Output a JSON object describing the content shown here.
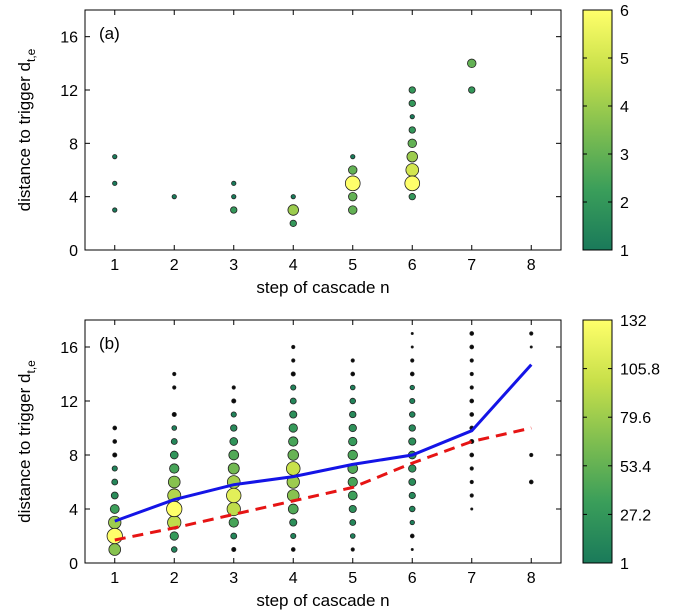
{
  "chart_data": [
    {
      "type": "scatter",
      "panel_label": "(a)",
      "xlabel": "step of cascade n",
      "ylabel_main": "distance to trigger d",
      "ylabel_sub": "t,e",
      "xlim": [
        0.5,
        8.5
      ],
      "ylim": [
        0,
        18
      ],
      "xticks": [
        "1",
        "2",
        "3",
        "4",
        "5",
        "6",
        "7",
        "8"
      ],
      "yticks": [
        "0",
        "4",
        "8",
        "12",
        "16"
      ],
      "colorbar": {
        "range": [
          1,
          6
        ],
        "ticks": [
          "1",
          "2",
          "3",
          "4",
          "5",
          "6"
        ],
        "colors": [
          "#1a7a5a",
          "#3a9e5a",
          "#7fbe50",
          "#c8e04a",
          "#ffff6a"
        ]
      },
      "points": [
        {
          "x": 1,
          "y": 3,
          "count": 1
        },
        {
          "x": 1,
          "y": 5,
          "count": 1
        },
        {
          "x": 1,
          "y": 7,
          "count": 1
        },
        {
          "x": 2,
          "y": 4,
          "count": 1
        },
        {
          "x": 3,
          "y": 3,
          "count": 2
        },
        {
          "x": 3,
          "y": 4,
          "count": 1
        },
        {
          "x": 3,
          "y": 5,
          "count": 1
        },
        {
          "x": 4,
          "y": 2,
          "count": 2
        },
        {
          "x": 4,
          "y": 3,
          "count": 4
        },
        {
          "x": 4,
          "y": 4,
          "count": 1
        },
        {
          "x": 5,
          "y": 3,
          "count": 3
        },
        {
          "x": 5,
          "y": 4,
          "count": 3
        },
        {
          "x": 5,
          "y": 5,
          "count": 6
        },
        {
          "x": 5,
          "y": 6,
          "count": 3
        },
        {
          "x": 5,
          "y": 7,
          "count": 1
        },
        {
          "x": 6,
          "y": 4,
          "count": 2
        },
        {
          "x": 6,
          "y": 5,
          "count": 6
        },
        {
          "x": 6,
          "y": 6,
          "count": 5
        },
        {
          "x": 6,
          "y": 7,
          "count": 4
        },
        {
          "x": 6,
          "y": 8,
          "count": 3
        },
        {
          "x": 6,
          "y": 9,
          "count": 2
        },
        {
          "x": 6,
          "y": 10,
          "count": 1
        },
        {
          "x": 6,
          "y": 11,
          "count": 2
        },
        {
          "x": 6,
          "y": 12,
          "count": 2
        },
        {
          "x": 7,
          "y": 12,
          "count": 2
        },
        {
          "x": 7,
          "y": 14,
          "count": 3
        }
      ]
    },
    {
      "type": "scatter",
      "panel_label": "(b)",
      "xlabel": "step of cascade n",
      "ylabel_main": "distance to trigger d",
      "ylabel_sub": "t,e",
      "xlim": [
        0.5,
        8.5
      ],
      "ylim": [
        0,
        18
      ],
      "xticks": [
        "1",
        "2",
        "3",
        "4",
        "5",
        "6",
        "7",
        "8"
      ],
      "yticks": [
        "0",
        "4",
        "8",
        "12",
        "16"
      ],
      "colorbar": {
        "range": [
          1,
          132
        ],
        "ticks": [
          "1",
          "27.2",
          "53.4",
          "79.6",
          "105.8",
          "132"
        ],
        "colors": [
          "#1a7a5a",
          "#3a9e5a",
          "#7fbe50",
          "#c8e04a",
          "#ffff6a"
        ]
      },
      "points": [
        {
          "x": 1,
          "y": 1,
          "count": 70
        },
        {
          "x": 1,
          "y": 2,
          "count": 132
        },
        {
          "x": 1,
          "y": 3,
          "count": 80
        },
        {
          "x": 1,
          "y": 4,
          "count": 35
        },
        {
          "x": 1,
          "y": 5,
          "count": 18
        },
        {
          "x": 1,
          "y": 6,
          "count": 12
        },
        {
          "x": 1,
          "y": 7,
          "count": 8
        },
        {
          "x": 1,
          "y": 8,
          "count": 4
        },
        {
          "x": 1,
          "y": 9,
          "count": 3
        },
        {
          "x": 1,
          "y": 10,
          "count": 3
        },
        {
          "x": 2,
          "y": 1,
          "count": 10
        },
        {
          "x": 2,
          "y": 2,
          "count": 30
        },
        {
          "x": 2,
          "y": 3,
          "count": 95
        },
        {
          "x": 2,
          "y": 4,
          "count": 132
        },
        {
          "x": 2,
          "y": 5,
          "count": 90
        },
        {
          "x": 2,
          "y": 6,
          "count": 70
        },
        {
          "x": 2,
          "y": 7,
          "count": 40
        },
        {
          "x": 2,
          "y": 8,
          "count": 25
        },
        {
          "x": 2,
          "y": 9,
          "count": 12
        },
        {
          "x": 2,
          "y": 10,
          "count": 6
        },
        {
          "x": 2,
          "y": 11,
          "count": 4
        },
        {
          "x": 2,
          "y": 13,
          "count": 2
        },
        {
          "x": 2,
          "y": 14,
          "count": 2
        },
        {
          "x": 3,
          "y": 1,
          "count": 4
        },
        {
          "x": 3,
          "y": 2,
          "count": 12
        },
        {
          "x": 3,
          "y": 3,
          "count": 40
        },
        {
          "x": 3,
          "y": 4,
          "count": 95
        },
        {
          "x": 3,
          "y": 5,
          "count": 115
        },
        {
          "x": 3,
          "y": 6,
          "count": 85
        },
        {
          "x": 3,
          "y": 7,
          "count": 60
        },
        {
          "x": 3,
          "y": 8,
          "count": 45
        },
        {
          "x": 3,
          "y": 9,
          "count": 25
        },
        {
          "x": 3,
          "y": 10,
          "count": 15
        },
        {
          "x": 3,
          "y": 11,
          "count": 8
        },
        {
          "x": 3,
          "y": 12,
          "count": 4
        },
        {
          "x": 3,
          "y": 13,
          "count": 2
        },
        {
          "x": 4,
          "y": 1,
          "count": 3
        },
        {
          "x": 4,
          "y": 2,
          "count": 8
        },
        {
          "x": 4,
          "y": 3,
          "count": 20
        },
        {
          "x": 4,
          "y": 4,
          "count": 45
        },
        {
          "x": 4,
          "y": 5,
          "count": 70
        },
        {
          "x": 4,
          "y": 6,
          "count": 80
        },
        {
          "x": 4,
          "y": 7,
          "count": 100
        },
        {
          "x": 4,
          "y": 8,
          "count": 55
        },
        {
          "x": 4,
          "y": 9,
          "count": 40
        },
        {
          "x": 4,
          "y": 10,
          "count": 30
        },
        {
          "x": 4,
          "y": 11,
          "count": 20
        },
        {
          "x": 4,
          "y": 12,
          "count": 12
        },
        {
          "x": 4,
          "y": 13,
          "count": 8
        },
        {
          "x": 4,
          "y": 14,
          "count": 4
        },
        {
          "x": 4,
          "y": 15,
          "count": 2
        },
        {
          "x": 4,
          "y": 16,
          "count": 2
        },
        {
          "x": 5,
          "y": 1,
          "count": 2
        },
        {
          "x": 5,
          "y": 2,
          "count": 6
        },
        {
          "x": 5,
          "y": 3,
          "count": 12
        },
        {
          "x": 5,
          "y": 4,
          "count": 20
        },
        {
          "x": 5,
          "y": 5,
          "count": 35
        },
        {
          "x": 5,
          "y": 6,
          "count": 40
        },
        {
          "x": 5,
          "y": 7,
          "count": 45
        },
        {
          "x": 5,
          "y": 8,
          "count": 42
        },
        {
          "x": 5,
          "y": 9,
          "count": 30
        },
        {
          "x": 5,
          "y": 10,
          "count": 22
        },
        {
          "x": 5,
          "y": 11,
          "count": 15
        },
        {
          "x": 5,
          "y": 12,
          "count": 10
        },
        {
          "x": 5,
          "y": 13,
          "count": 6
        },
        {
          "x": 5,
          "y": 14,
          "count": 3
        },
        {
          "x": 5,
          "y": 15,
          "count": 2
        },
        {
          "x": 6,
          "y": 1,
          "count": 1
        },
        {
          "x": 6,
          "y": 2,
          "count": 3
        },
        {
          "x": 6,
          "y": 3,
          "count": 5
        },
        {
          "x": 6,
          "y": 4,
          "count": 10
        },
        {
          "x": 6,
          "y": 5,
          "count": 14
        },
        {
          "x": 6,
          "y": 6,
          "count": 18
        },
        {
          "x": 6,
          "y": 7,
          "count": 22
        },
        {
          "x": 6,
          "y": 8,
          "count": 25
        },
        {
          "x": 6,
          "y": 9,
          "count": 20
        },
        {
          "x": 6,
          "y": 10,
          "count": 15
        },
        {
          "x": 6,
          "y": 11,
          "count": 10
        },
        {
          "x": 6,
          "y": 12,
          "count": 8
        },
        {
          "x": 6,
          "y": 13,
          "count": 5
        },
        {
          "x": 6,
          "y": 14,
          "count": 3
        },
        {
          "x": 6,
          "y": 15,
          "count": 2
        },
        {
          "x": 6,
          "y": 16,
          "count": 1
        },
        {
          "x": 6,
          "y": 17,
          "count": 1
        },
        {
          "x": 7,
          "y": 4,
          "count": 1
        },
        {
          "x": 7,
          "y": 5,
          "count": 2
        },
        {
          "x": 7,
          "y": 6,
          "count": 2
        },
        {
          "x": 7,
          "y": 7,
          "count": 2
        },
        {
          "x": 7,
          "y": 8,
          "count": 3
        },
        {
          "x": 7,
          "y": 9,
          "count": 4
        },
        {
          "x": 7,
          "y": 10,
          "count": 3
        },
        {
          "x": 7,
          "y": 11,
          "count": 3
        },
        {
          "x": 7,
          "y": 12,
          "count": 3
        },
        {
          "x": 7,
          "y": 13,
          "count": 2
        },
        {
          "x": 7,
          "y": 14,
          "count": 2
        },
        {
          "x": 7,
          "y": 15,
          "count": 2
        },
        {
          "x": 7,
          "y": 16,
          "count": 3
        },
        {
          "x": 7,
          "y": 17,
          "count": 3
        },
        {
          "x": 8,
          "y": 6,
          "count": 3
        },
        {
          "x": 8,
          "y": 8,
          "count": 2
        },
        {
          "x": 8,
          "y": 16,
          "count": 1
        },
        {
          "x": 8,
          "y": 17,
          "count": 2
        }
      ],
      "series": [
        {
          "style": "solid",
          "color": "#1414e6",
          "x": [
            1,
            2,
            3,
            4,
            5,
            6,
            7,
            8
          ],
          "values": [
            3.1,
            4.7,
            5.8,
            6.4,
            7.3,
            8.0,
            9.8,
            14.7
          ]
        },
        {
          "style": "dashed",
          "color": "#e61414",
          "x": [
            1,
            2,
            3,
            4,
            5,
            6,
            7,
            8
          ],
          "values": [
            1.7,
            2.6,
            3.6,
            4.6,
            5.6,
            7.4,
            9.0,
            10.0
          ]
        }
      ]
    }
  ]
}
